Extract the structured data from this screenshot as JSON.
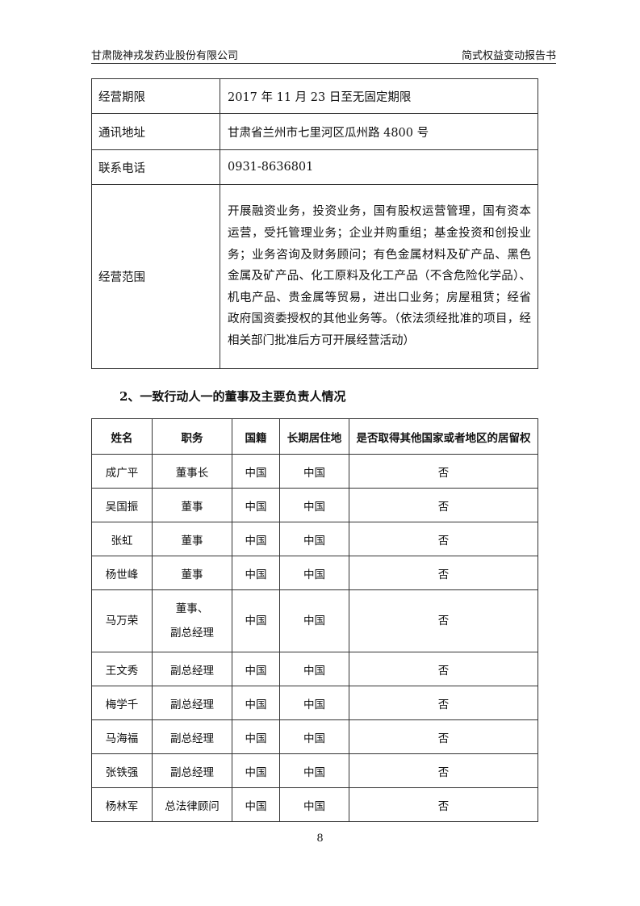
{
  "header": {
    "left": "甘肃陇神戎发药业股份有限公司",
    "right": "简式权益变动报告书"
  },
  "info_table": [
    {
      "label": "经营期限",
      "value": "2017 年 11 月 23 日至无固定期限"
    },
    {
      "label": "通讯地址",
      "value": "甘肃省兰州市七里河区瓜州路 4800 号"
    },
    {
      "label": "联系电话",
      "value": "0931-8636801"
    },
    {
      "label": "经营范围",
      "value": "开展融资业务，投资业务，国有股权运营管理，国有资本运营，受托管理业务；企业并购重组；基金投资和创投业务；业务咨询及财务顾问；有色金属材料及矿产品、黑色金属及矿产品、化工原料及化工产品（不含危险化学品）、机电产品、贵金属等贸易，进出口业务；房屋租赁；经省政府国资委授权的其他业务等。（依法须经批准的项目，经相关部门批准后方可开展经营活动）"
    }
  ],
  "section_title": "2、一致行动人一的董事及主要负责人情况",
  "people_table": {
    "headers": [
      "姓名",
      "职务",
      "国籍",
      "长期居住地",
      "是否取得其他国家或者地区的居留权"
    ],
    "rows": [
      [
        "成广平",
        "董事长",
        "中国",
        "中国",
        "否"
      ],
      [
        "吴国振",
        "董事",
        "中国",
        "中国",
        "否"
      ],
      [
        "张虹",
        "董事",
        "中国",
        "中国",
        "否"
      ],
      [
        "杨世峰",
        "董事",
        "中国",
        "中国",
        "否"
      ],
      [
        "马万荣",
        "董事、副总经理",
        "中国",
        "中国",
        "否"
      ],
      [
        "王文秀",
        "副总经理",
        "中国",
        "中国",
        "否"
      ],
      [
        "梅学千",
        "副总经理",
        "中国",
        "中国",
        "否"
      ],
      [
        "马海福",
        "副总经理",
        "中国",
        "中国",
        "否"
      ],
      [
        "张铁强",
        "副总经理",
        "中国",
        "中国",
        "否"
      ],
      [
        "杨林军",
        "总法律顾问",
        "中国",
        "中国",
        "否"
      ]
    ]
  },
  "page_number": "8"
}
